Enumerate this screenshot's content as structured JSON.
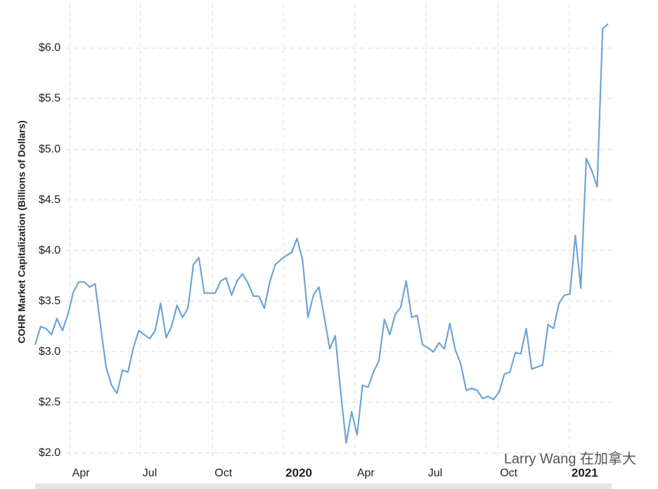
{
  "chart_data": {
    "type": "line",
    "ylabel": "COHR Market Capitalization (Billions of Dollars)",
    "watermark": "Larry Wang 在加拿大",
    "series": [
      {
        "name": "COHR",
        "color": "#6ea4d6",
        "values": [
          3.07,
          3.25,
          3.23,
          3.17,
          3.33,
          3.21,
          3.37,
          3.59,
          3.69,
          3.69,
          3.64,
          3.67,
          3.25,
          2.85,
          2.67,
          2.59,
          2.82,
          2.8,
          3.04,
          3.21,
          3.17,
          3.13,
          3.21,
          3.48,
          3.14,
          3.25,
          3.46,
          3.34,
          3.43,
          3.86,
          3.93,
          3.58,
          3.58,
          3.58,
          3.7,
          3.73,
          3.56,
          3.7,
          3.77,
          3.68,
          3.55,
          3.55,
          3.43,
          3.69,
          3.86,
          3.91,
          3.95,
          3.98,
          4.12,
          3.91,
          3.34,
          3.56,
          3.64,
          3.34,
          3.03,
          3.16,
          2.6,
          2.1,
          2.41,
          2.18,
          2.67,
          2.65,
          2.8,
          2.91,
          3.32,
          3.17,
          3.37,
          3.44,
          3.7,
          3.34,
          3.36,
          3.07,
          3.04,
          3.0,
          3.09,
          3.03,
          3.28,
          3.02,
          2.88,
          2.62,
          2.64,
          2.62,
          2.54,
          2.56,
          2.53,
          2.6,
          2.78,
          2.8,
          2.99,
          2.98,
          3.23,
          2.83,
          2.85,
          2.87,
          3.27,
          3.23,
          3.48,
          3.56,
          3.57,
          4.15,
          3.63,
          4.91,
          4.79,
          4.63,
          6.19,
          6.24
        ]
      }
    ],
    "xlim": [
      0,
      105
    ],
    "xticks": [
      {
        "value": 6.4,
        "label": "Apr"
      },
      {
        "value": 19.3,
        "label": "Jul"
      },
      {
        "value": 32.5,
        "label": "Oct"
      },
      {
        "value": 45.5,
        "label": "2020"
      },
      {
        "value": 58.6,
        "label": "Apr"
      },
      {
        "value": 71.6,
        "label": "Jul"
      },
      {
        "value": 84.8,
        "label": "Oct"
      },
      {
        "value": 97.9,
        "label": "2021"
      }
    ],
    "ylim": [
      1.93,
      6.44
    ],
    "yticks": [
      {
        "value": 2,
        "label": "$2.0"
      },
      {
        "value": 2.5,
        "label": "$2.5"
      },
      {
        "value": 3,
        "label": "$3.0"
      },
      {
        "value": 3.5,
        "label": "$3.5"
      },
      {
        "value": 4,
        "label": "$4.0"
      },
      {
        "value": 4.5,
        "label": "$4.5"
      },
      {
        "value": 5,
        "label": "$5.0"
      },
      {
        "value": 5.5,
        "label": "$5.5"
      },
      {
        "value": 6,
        "label": "$6.0"
      }
    ],
    "grid": true
  }
}
